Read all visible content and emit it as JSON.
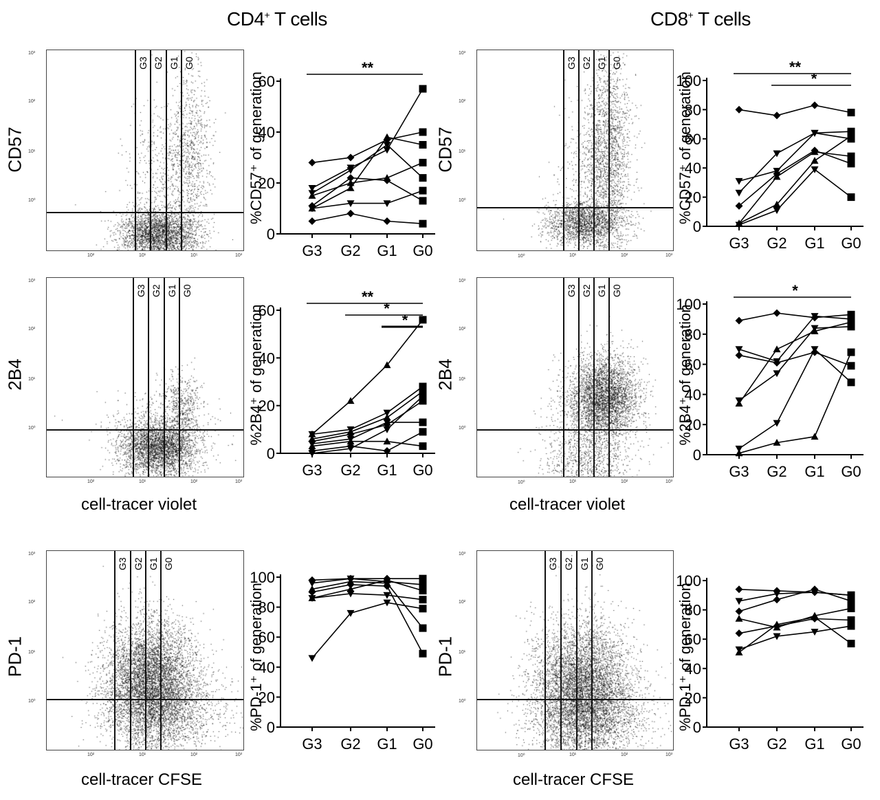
{
  "titles": {
    "cd4": "CD4",
    "cd8": "CD8",
    "sup": "+",
    "suffix": " T cells"
  },
  "flow_plots": [
    {
      "id": "cd4-cd57",
      "y_label": "CD57",
      "x_label": "",
      "gates": [
        "G3",
        "G2",
        "G1",
        "G0"
      ],
      "x_ticks": [
        "10²",
        "10¹",
        "10⁵",
        "10³"
      ],
      "y_ticks": [
        "10³",
        "10²",
        "10¹",
        "10⁰"
      ]
    },
    {
      "id": "cd8-cd57",
      "y_label": "CD57",
      "x_label": "",
      "gates": [
        "G3",
        "G2",
        "G1",
        "G0"
      ],
      "x_ticks": [
        "10⁰",
        "10¹",
        "10²",
        "10³"
      ],
      "y_ticks": [
        "10³",
        "10²",
        "10¹",
        "10⁰"
      ]
    },
    {
      "id": "cd4-2b4",
      "y_label": "2B4",
      "x_label": "cell-tracer violet",
      "gates": [
        "G3",
        "G2",
        "G1",
        "G0"
      ],
      "x_ticks": [
        "10²",
        "10¹",
        "10²",
        "10³"
      ],
      "y_ticks": [
        "10³",
        "10²",
        "10¹",
        "10⁰"
      ]
    },
    {
      "id": "cd8-2b4",
      "y_label": "2B4",
      "x_label": "cell-tracer violet",
      "gates": [
        "G3",
        "G2",
        "G1",
        "G0"
      ],
      "x_ticks": [
        "10⁰",
        "10¹",
        "10²",
        "10³"
      ],
      "y_ticks": [
        "10³",
        "10²",
        "10¹",
        "10⁰"
      ]
    },
    {
      "id": "cd4-pd1",
      "y_label": "PD-1",
      "x_label": "cell-tracer  CFSE",
      "gates": [
        "G3",
        "G2",
        "G1",
        "G0"
      ],
      "x_ticks": [
        "10²",
        "10¹",
        "10²",
        "10³"
      ],
      "y_ticks": [
        "10³",
        "10²",
        "10¹",
        "10⁰"
      ]
    },
    {
      "id": "cd8-pd1",
      "y_label": "PD-1",
      "x_label": "cell-tracer  CFSE",
      "gates": [
        "G3",
        "G2",
        "G1",
        "G0"
      ],
      "x_ticks": [
        "10⁰",
        "10¹",
        "10²",
        "10³"
      ],
      "y_ticks": [
        "10³",
        "10²",
        "10¹",
        "10⁰"
      ]
    }
  ],
  "chart_data": [
    {
      "id": "cd4-cd57-line",
      "type": "line",
      "ylabel": "%CD57⁺ of generation",
      "categories": [
        "G3",
        "G2",
        "G1",
        "G0"
      ],
      "ylim": [
        0,
        60
      ],
      "yticks": [
        0,
        20,
        40,
        60
      ],
      "series": [
        {
          "marker": "diamond",
          "values": [
            28,
            30,
            37,
            40
          ]
        },
        {
          "marker": "down",
          "values": [
            18,
            26,
            33,
            57
          ]
        },
        {
          "marker": "down",
          "values": [
            16,
            25,
            35,
            22
          ]
        },
        {
          "marker": "up",
          "values": [
            10,
            18,
            38,
            35
          ]
        },
        {
          "marker": "diamond",
          "values": [
            11,
            22,
            21,
            13
          ]
        },
        {
          "marker": "up",
          "values": [
            15,
            20,
            22,
            28
          ]
        },
        {
          "marker": "down",
          "values": [
            10,
            12,
            12,
            17
          ]
        },
        {
          "marker": "diamond",
          "values": [
            5,
            8,
            5,
            4
          ]
        }
      ],
      "sig": [
        {
          "from": "G3",
          "to": "G0",
          "label": "**",
          "level": 0
        }
      ]
    },
    {
      "id": "cd8-cd57-line",
      "type": "line",
      "ylabel": "%CD57⁺ of generation",
      "categories": [
        "G3",
        "G2",
        "G1",
        "G0"
      ],
      "ylim": [
        0,
        100
      ],
      "yticks": [
        0,
        20,
        40,
        60,
        80,
        100
      ],
      "series": [
        {
          "marker": "diamond",
          "values": [
            80,
            76,
            83,
            78
          ]
        },
        {
          "marker": "down",
          "values": [
            31,
            38,
            64,
            65
          ]
        },
        {
          "marker": "down",
          "values": [
            23,
            50,
            64,
            60
          ]
        },
        {
          "marker": "diamond",
          "values": [
            14,
            36,
            52,
            43
          ]
        },
        {
          "marker": "up",
          "values": [
            2,
            34,
            51,
            48
          ]
        },
        {
          "marker": "up",
          "values": [
            2,
            15,
            45,
            62
          ]
        },
        {
          "marker": "down",
          "values": [
            1,
            11,
            39,
            20
          ]
        }
      ],
      "sig": [
        {
          "from": "G3",
          "to": "G0",
          "label": "**",
          "level": 0
        },
        {
          "from": "G2",
          "to": "G0",
          "label": "*",
          "level": 1
        }
      ]
    },
    {
      "id": "cd4-2b4-line",
      "type": "line",
      "ylabel": "%2B4⁺ of generation",
      "categories": [
        "G3",
        "G2",
        "G1",
        "G0"
      ],
      "ylim": [
        0,
        60
      ],
      "yticks": [
        0,
        20,
        40,
        60
      ],
      "series": [
        {
          "marker": "up",
          "values": [
            8,
            22,
            37,
            56
          ]
        },
        {
          "marker": "down",
          "values": [
            8,
            10,
            17,
            28
          ]
        },
        {
          "marker": "up",
          "values": [
            6,
            9,
            15,
            26
          ]
        },
        {
          "marker": "diamond",
          "values": [
            5,
            8,
            12,
            22
          ]
        },
        {
          "marker": "down",
          "values": [
            4,
            6,
            13,
            13
          ]
        },
        {
          "marker": "up",
          "values": [
            3,
            5,
            5,
            3
          ]
        },
        {
          "marker": "diamond",
          "values": [
            1,
            3,
            1,
            9
          ]
        },
        {
          "marker": "down",
          "values": [
            0,
            2,
            10,
            24
          ]
        }
      ],
      "sig": [
        {
          "from": "G3",
          "to": "G0",
          "label": "**",
          "level": 0
        },
        {
          "from": "G2",
          "to": "G0",
          "label": "*",
          "level": 1
        },
        {
          "from": "G1",
          "to": "G0",
          "label": "*",
          "level": 2
        }
      ]
    },
    {
      "id": "cd8-2b4-line",
      "type": "line",
      "ylabel": "%2B4⁺ of generation",
      "categories": [
        "G3",
        "G2",
        "G1",
        "G0"
      ],
      "ylim": [
        0,
        100
      ],
      "yticks": [
        0,
        20,
        40,
        60,
        80,
        100
      ],
      "series": [
        {
          "marker": "diamond",
          "values": [
            89,
            94,
            91,
            93
          ]
        },
        {
          "marker": "down",
          "values": [
            70,
            62,
            92,
            90
          ]
        },
        {
          "marker": "diamond",
          "values": [
            66,
            61,
            68,
            59
          ]
        },
        {
          "marker": "down",
          "values": [
            36,
            54,
            84,
            85
          ]
        },
        {
          "marker": "up",
          "values": [
            34,
            70,
            82,
            88
          ]
        },
        {
          "marker": "down",
          "values": [
            4,
            21,
            70,
            48
          ]
        },
        {
          "marker": "up",
          "values": [
            1,
            8,
            12,
            68
          ]
        }
      ],
      "sig": [
        {
          "from": "G3",
          "to": "G0",
          "label": "*",
          "level": 0
        }
      ]
    },
    {
      "id": "cd4-pd1-line",
      "type": "line",
      "ylabel": "%PD-1⁺ of generation",
      "categories": [
        "G3",
        "G2",
        "G1",
        "G0"
      ],
      "ylim": [
        0,
        100
      ],
      "yticks": [
        0,
        20,
        40,
        60,
        80,
        100
      ],
      "series": [
        {
          "marker": "diamond",
          "values": [
            98,
            99,
            99,
            99
          ]
        },
        {
          "marker": "down",
          "values": [
            96,
            99,
            97,
            95
          ]
        },
        {
          "marker": "up",
          "values": [
            92,
            97,
            96,
            66
          ]
        },
        {
          "marker": "diamond",
          "values": [
            90,
            95,
            94,
            49
          ]
        },
        {
          "marker": "up",
          "values": [
            86,
            92,
            98,
            91
          ]
        },
        {
          "marker": "down",
          "values": [
            86,
            89,
            88,
            85
          ]
        },
        {
          "marker": "down",
          "values": [
            46,
            76,
            83,
            79
          ]
        }
      ],
      "sig": []
    },
    {
      "id": "cd8-pd1-line",
      "type": "line",
      "ylabel": "%PD-1⁺ of generation",
      "categories": [
        "G3",
        "G2",
        "G1",
        "G0"
      ],
      "ylim": [
        0,
        100
      ],
      "yticks": [
        0,
        20,
        40,
        60,
        80,
        100
      ],
      "series": [
        {
          "marker": "diamond",
          "values": [
            94,
            93,
            92,
            90
          ]
        },
        {
          "marker": "down",
          "values": [
            86,
            91,
            92,
            90
          ]
        },
        {
          "marker": "diamond",
          "values": [
            79,
            87,
            94,
            86
          ]
        },
        {
          "marker": "up",
          "values": [
            74,
            68,
            76,
            81
          ]
        },
        {
          "marker": "diamond",
          "values": [
            64,
            69,
            74,
            73
          ]
        },
        {
          "marker": "down",
          "values": [
            53,
            62,
            65,
            69
          ]
        },
        {
          "marker": "up",
          "values": [
            51,
            70,
            75,
            57
          ]
        }
      ],
      "sig": []
    }
  ]
}
